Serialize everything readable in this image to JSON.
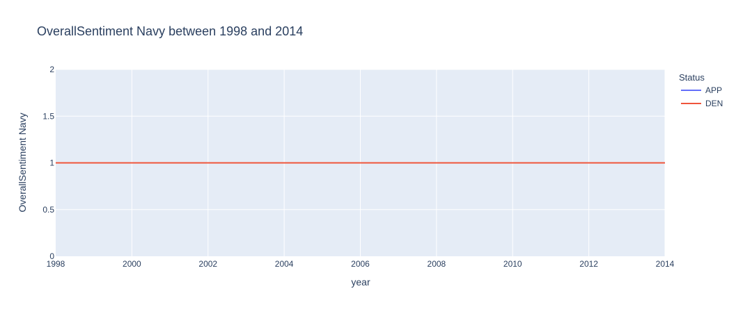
{
  "chart_data": {
    "type": "line",
    "title": "OverallSentiment Navy between 1998 and 2014",
    "xlabel": "year",
    "ylabel": "OverallSentiment Navy",
    "xlim": [
      1998,
      2014
    ],
    "ylim": [
      0,
      2
    ],
    "x_ticks": [
      "1998",
      "2000",
      "2002",
      "2004",
      "2006",
      "2008",
      "2010",
      "2012",
      "2014"
    ],
    "y_ticks": [
      "0",
      "0.5",
      "1",
      "1.5",
      "2"
    ],
    "grid": true,
    "legend": {
      "title": "Status",
      "placement": "right",
      "entries": [
        "APP",
        "DEN"
      ]
    },
    "series": [
      {
        "name": "APP",
        "color": "#636efa",
        "x": [
          1998,
          2014
        ],
        "y": [
          1,
          1
        ]
      },
      {
        "name": "DEN",
        "color": "#ef553b",
        "x": [
          1998,
          2014
        ],
        "y": [
          1,
          1
        ]
      }
    ]
  }
}
